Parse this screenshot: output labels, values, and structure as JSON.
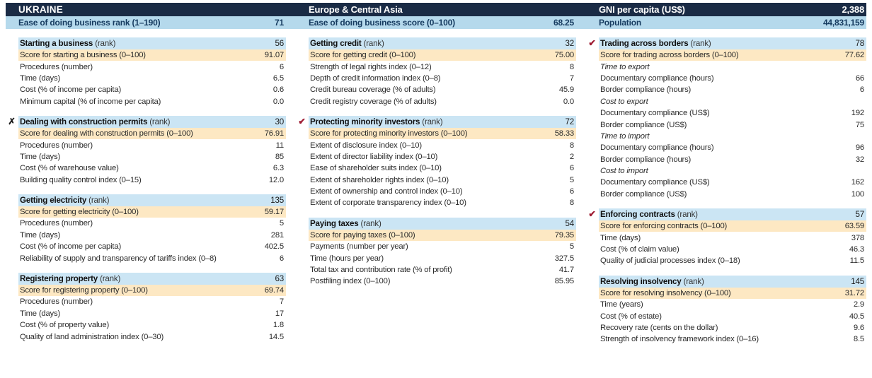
{
  "header": {
    "country": "UKRAINE",
    "region": "Europe & Central Asia",
    "gni": {
      "label": "GNI per capita (US$)",
      "value": "2,388"
    },
    "rank": {
      "label": "Ease of doing business rank (1–190)",
      "value": "71"
    },
    "score": {
      "label": "Ease of doing business score (0–100)",
      "value": "68.25"
    },
    "population": {
      "label": "Population",
      "value": "44,831,159"
    }
  },
  "icons": {
    "check": "✔",
    "x": "✗"
  },
  "colors": {
    "navy_bar": "#1a2b45",
    "top_blue_bar": "#b5d9ec",
    "section_header_blue": "#cbe5f4",
    "score_row_cream": "#fde8c3",
    "check_red": "#9e1b32",
    "x_black": "#1a1a1a"
  },
  "columns": [
    [
      {
        "marker": "none",
        "title": "Starting a business",
        "suffix": "(rank)",
        "value": "56",
        "rows": [
          {
            "type": "score",
            "label": "Score for starting a business (0–100)",
            "value": "91.07"
          },
          {
            "type": "plain",
            "label": "Procedures (number)",
            "value": "6"
          },
          {
            "type": "plain",
            "label": "Time (days)",
            "value": "6.5"
          },
          {
            "type": "plain",
            "label": "Cost (% of income per capita)",
            "value": "0.6"
          },
          {
            "type": "plain",
            "label": "Minimum capital (% of income per capita)",
            "value": "0.0"
          }
        ]
      },
      {
        "marker": "x",
        "title": "Dealing with construction permits",
        "suffix": "(rank)",
        "value": "30",
        "rows": [
          {
            "type": "score",
            "label": "Score for dealing with construction permits (0–100)",
            "value": "76.91"
          },
          {
            "type": "plain",
            "label": "Procedures (number)",
            "value": "11"
          },
          {
            "type": "plain",
            "label": "Time (days)",
            "value": "85"
          },
          {
            "type": "plain",
            "label": "Cost (% of warehouse value)",
            "value": "6.3"
          },
          {
            "type": "plain",
            "label": "Building quality control index (0–15)",
            "value": "12.0"
          }
        ]
      },
      {
        "marker": "none",
        "title": "Getting electricity",
        "suffix": "(rank)",
        "value": "135",
        "rows": [
          {
            "type": "score",
            "label": "Score for getting electricity (0–100)",
            "value": "59.17"
          },
          {
            "type": "plain",
            "label": "Procedures (number)",
            "value": "5"
          },
          {
            "type": "plain",
            "label": "Time (days)",
            "value": "281"
          },
          {
            "type": "plain",
            "label": "Cost (% of income per capita)",
            "value": "402.5"
          },
          {
            "type": "plain",
            "label": "Reliability of supply and transparency of tariffs index (0–8)",
            "value": "6"
          }
        ]
      },
      {
        "marker": "none",
        "title": "Registering property",
        "suffix": "(rank)",
        "value": "63",
        "rows": [
          {
            "type": "score",
            "label": "Score for registering property (0–100)",
            "value": "69.74"
          },
          {
            "type": "plain",
            "label": "Procedures (number)",
            "value": "7"
          },
          {
            "type": "plain",
            "label": "Time (days)",
            "value": "17"
          },
          {
            "type": "plain",
            "label": "Cost (% of property value)",
            "value": "1.8"
          },
          {
            "type": "plain",
            "label": "Quality of land administration index (0–30)",
            "value": "14.5"
          }
        ]
      }
    ],
    [
      {
        "marker": "none",
        "title": "Getting credit",
        "suffix": "(rank)",
        "value": "32",
        "rows": [
          {
            "type": "score",
            "label": "Score for getting credit (0–100)",
            "value": "75.00"
          },
          {
            "type": "plain",
            "label": "Strength of legal rights index (0–12)",
            "value": "8"
          },
          {
            "type": "plain",
            "label": "Depth of credit information index (0–8)",
            "value": "7"
          },
          {
            "type": "plain",
            "label": "Credit bureau coverage (% of adults)",
            "value": "45.9"
          },
          {
            "type": "plain",
            "label": "Credit registry coverage (% of adults)",
            "value": "0.0"
          }
        ]
      },
      {
        "marker": "check",
        "title": "Protecting minority investors",
        "suffix": "(rank)",
        "value": "72",
        "rows": [
          {
            "type": "score",
            "label": "Score for protecting minority investors (0–100)",
            "value": "58.33"
          },
          {
            "type": "plain",
            "label": "Extent of disclosure index (0–10)",
            "value": "8"
          },
          {
            "type": "plain",
            "label": "Extent of director liability index (0–10)",
            "value": "2"
          },
          {
            "type": "plain",
            "label": "Ease of shareholder suits index (0–10)",
            "value": "6"
          },
          {
            "type": "plain",
            "label": "Extent of shareholder rights index (0–10)",
            "value": "5"
          },
          {
            "type": "plain",
            "label": "Extent of ownership and control index (0–10)",
            "value": "6"
          },
          {
            "type": "plain",
            "label": "Extent of corporate transparency index (0–10)",
            "value": "8"
          }
        ]
      },
      {
        "marker": "none",
        "title": "Paying taxes",
        "suffix": "(rank)",
        "value": "54",
        "rows": [
          {
            "type": "score",
            "label": "Score for paying taxes (0–100)",
            "value": "79.35"
          },
          {
            "type": "plain",
            "label": "Payments (number per year)",
            "value": "5"
          },
          {
            "type": "plain",
            "label": "Time (hours per year)",
            "value": "327.5"
          },
          {
            "type": "plain",
            "label": "Total tax and contribution rate (% of profit)",
            "value": "41.7"
          },
          {
            "type": "plain",
            "label": "Postfiling index (0–100)",
            "value": "85.95"
          }
        ]
      }
    ],
    [
      {
        "marker": "check",
        "title": "Trading across borders",
        "suffix": "(rank)",
        "value": "78",
        "rows": [
          {
            "type": "score",
            "label": "Score for trading across borders (0–100)",
            "value": "77.62"
          },
          {
            "type": "subhead",
            "label": "Time to export",
            "value": ""
          },
          {
            "type": "plain",
            "label": "Documentary compliance (hours)",
            "value": "66"
          },
          {
            "type": "plain",
            "label": "Border compliance (hours)",
            "value": "6"
          },
          {
            "type": "subhead",
            "label": "Cost to export",
            "value": ""
          },
          {
            "type": "plain",
            "label": "Documentary compliance (US$)",
            "value": "192"
          },
          {
            "type": "plain",
            "label": "Border compliance (US$)",
            "value": "75"
          },
          {
            "type": "subhead",
            "label": "Time to import",
            "value": ""
          },
          {
            "type": "plain",
            "label": "Documentary compliance (hours)",
            "value": "96"
          },
          {
            "type": "plain",
            "label": "Border compliance (hours)",
            "value": "32"
          },
          {
            "type": "subhead",
            "label": "Cost to import",
            "value": ""
          },
          {
            "type": "plain",
            "label": "Documentary compliance (US$)",
            "value": "162"
          },
          {
            "type": "plain",
            "label": "Border compliance (US$)",
            "value": "100"
          }
        ]
      },
      {
        "marker": "check",
        "title": "Enforcing contracts",
        "suffix": "(rank)",
        "value": "57",
        "rows": [
          {
            "type": "score",
            "label": "Score for enforcing contracts (0–100)",
            "value": "63.59"
          },
          {
            "type": "plain",
            "label": "Time (days)",
            "value": "378"
          },
          {
            "type": "plain",
            "label": "Cost (% of claim value)",
            "value": "46.3"
          },
          {
            "type": "plain",
            "label": "Quality of judicial processes index (0–18)",
            "value": "11.5"
          }
        ]
      },
      {
        "marker": "none",
        "title": "Resolving insolvency",
        "suffix": "(rank)",
        "value": "145",
        "rows": [
          {
            "type": "score",
            "label": "Score for resolving insolvency (0–100)",
            "value": "31.72"
          },
          {
            "type": "plain",
            "label": "Time (years)",
            "value": "2.9"
          },
          {
            "type": "plain",
            "label": "Cost (% of estate)",
            "value": "40.5"
          },
          {
            "type": "plain",
            "label": "Recovery rate (cents on the dollar)",
            "value": "9.6"
          },
          {
            "type": "plain",
            "label": "Strength of insolvency framework index (0–16)",
            "value": "8.5"
          }
        ]
      }
    ]
  ]
}
